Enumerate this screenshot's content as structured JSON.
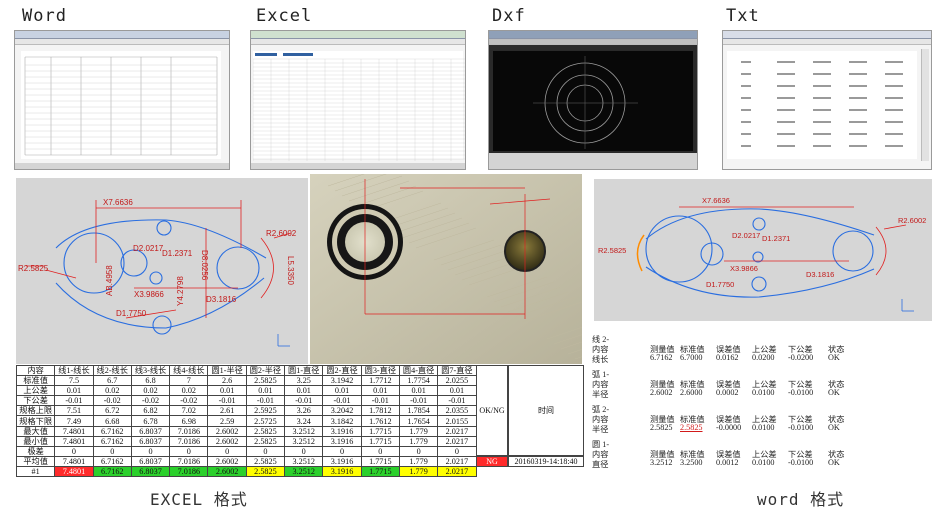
{
  "headers": [
    "Word",
    "Excel",
    "Dxf",
    "Txt"
  ],
  "captions": {
    "excel": "EXCEL 格式",
    "word": "word 格式"
  },
  "cad_labels": {
    "x7": "X7.6636",
    "d2": "D2.0217",
    "d1": "D1.2371",
    "d8": "D8.0256",
    "r2a": "R2.5825",
    "r2b": "R2.6002",
    "l5": "L5.3350",
    "x3": "X3.9866",
    "d3": "D3.1816",
    "d1b": "D1.7750",
    "yval": "Y4.2798",
    "ab": "AB.4958"
  },
  "excel_table": {
    "header": [
      "内容",
      "线1-线长",
      "线2-线长",
      "线3-线长",
      "线4-线长",
      "圆1-半径",
      "圆2-半径",
      "圆1-直径",
      "圆2-直径",
      "圆3-直径",
      "圆4-直径",
      "圆7-直径"
    ],
    "rows": [
      [
        "标准值",
        "7.5",
        "6.7",
        "6.8",
        "7",
        "2.6",
        "2.5825",
        "3.25",
        "3.1942",
        "1.7712",
        "1.7754",
        "2.0255"
      ],
      [
        "上公差",
        "0.01",
        "0.02",
        "0.02",
        "0.02",
        "0.01",
        "0.01",
        "0.01",
        "0.01",
        "0.01",
        "0.01",
        "0.01"
      ],
      [
        "下公差",
        "-0.01",
        "-0.02",
        "-0.02",
        "-0.02",
        "-0.01",
        "-0.01",
        "-0.01",
        "-0.01",
        "-0.01",
        "-0.01",
        "-0.01"
      ],
      [
        "规格上限",
        "7.51",
        "6.72",
        "6.82",
        "7.02",
        "2.61",
        "2.5925",
        "3.26",
        "3.2042",
        "1.7812",
        "1.7854",
        "2.0355"
      ],
      [
        "规格下限",
        "7.49",
        "6.68",
        "6.78",
        "6.98",
        "2.59",
        "2.5725",
        "3.24",
        "3.1842",
        "1.7612",
        "1.7654",
        "2.0155"
      ],
      [
        "最大值",
        "7.4801",
        "6.7162",
        "6.8037",
        "7.0186",
        "2.6002",
        "2.5825",
        "3.2512",
        "3.1916",
        "1.7715",
        "1.779",
        "2.0217"
      ],
      [
        "最小值",
        "7.4801",
        "6.7162",
        "6.8037",
        "7.0186",
        "2.6002",
        "2.5825",
        "3.2512",
        "3.1916",
        "1.7715",
        "1.779",
        "2.0217"
      ],
      [
        "极差",
        "0",
        "0",
        "0",
        "0",
        "0",
        "0",
        "0",
        "0",
        "0",
        "0",
        "0"
      ],
      [
        "平均值",
        "7.4801",
        "6.7162",
        "6.8037",
        "7.0186",
        "2.6002",
        "2.5825",
        "3.2512",
        "3.1916",
        "1.7715",
        "1.779",
        "2.0217"
      ],
      [
        "#1",
        "7.4801",
        "6.7162",
        "6.8037",
        "7.0186",
        "2.6002",
        "2.5825",
        "3.2512",
        "3.1916",
        "1.7715",
        "1.779",
        "2.0217"
      ]
    ],
    "last_row_colors": [
      "",
      "red",
      "green",
      "green",
      "green",
      "green",
      "yellow",
      "green",
      "yellow",
      "green",
      "yellow",
      "yellow"
    ],
    "okng_label": "OK/NG",
    "time_label": "时间",
    "okng_value": "NG",
    "time_value": "20160319-14:18:40"
  },
  "word_report": {
    "column_headers": [
      "测量值",
      "标准值",
      "误差值",
      "上公差",
      "下公差",
      "状态"
    ],
    "blocks": [
      {
        "name": "线 2-",
        "label1": "内容",
        "label2": "线长",
        "values": [
          "6.7162",
          "6.7000",
          "0.0162",
          "0.0200",
          "-0.0200",
          "OK"
        ]
      },
      {
        "name": "弧 1-",
        "label1": "内容",
        "label2": "半径",
        "values": [
          "2.6002",
          "2.6000",
          "0.0002",
          "0.0100",
          "-0.0100",
          "OK"
        ]
      },
      {
        "name": "弧 2-",
        "label1": "内容",
        "label2": "半径",
        "values": [
          "2.5825",
          "2.5825",
          "-0.0000",
          "0.0100",
          "-0.0100",
          "OK"
        ]
      },
      {
        "name": "圆 1-",
        "label1": "内容",
        "label2": "直径",
        "values": [
          "3.2512",
          "3.2500",
          "0.0012",
          "0.0100",
          "-0.0100",
          "OK"
        ]
      }
    ]
  },
  "colors": {
    "red": "#ff2a2a",
    "green": "#2bd02b",
    "yellow": "#ffff00",
    "cad_red": "#e02020",
    "cad_blue": "#2a6ee0"
  }
}
